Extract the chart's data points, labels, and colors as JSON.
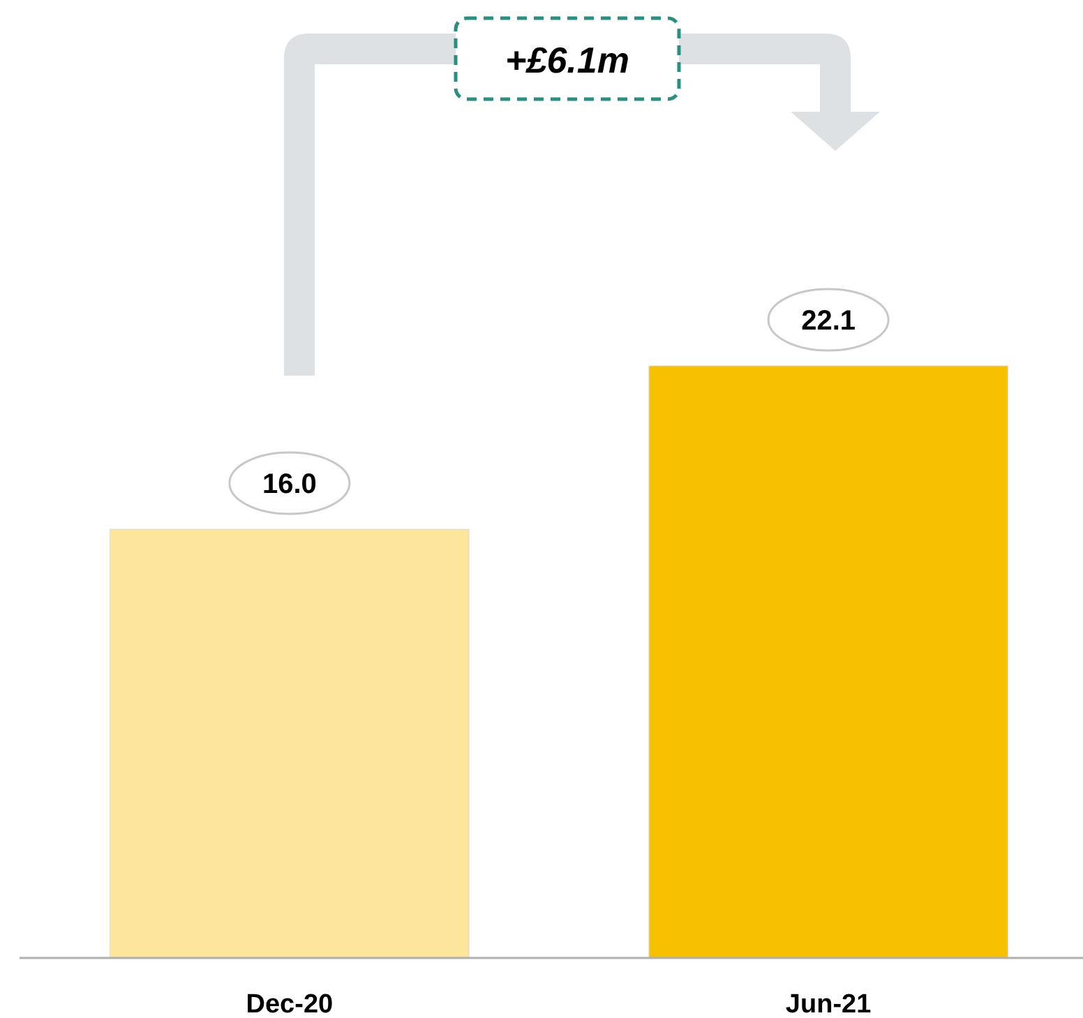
{
  "chart_data": {
    "type": "bar",
    "categories": [
      "Dec-20",
      "Jun-21"
    ],
    "values": [
      16.0,
      22.1
    ],
    "colors": [
      "#fde59b",
      "#f7c000"
    ],
    "value_labels": [
      "16.0",
      "22.1"
    ],
    "annotations": [
      "+£6.1m"
    ]
  }
}
